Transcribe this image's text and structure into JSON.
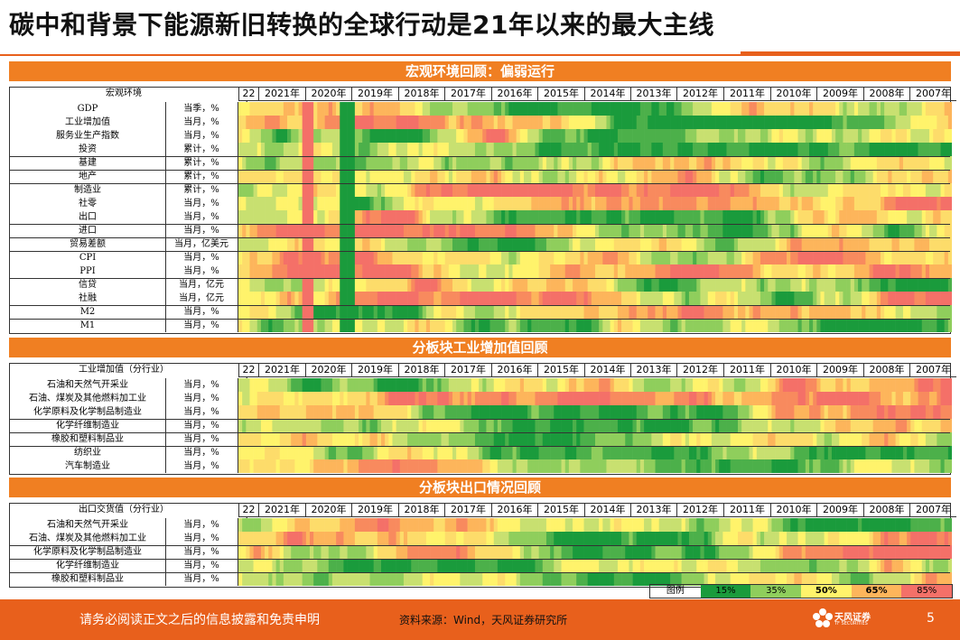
{
  "title": "碳中和背景下能源新旧转换的全球行动是21年以来的最大主线",
  "years": [
    "22年",
    "2021年",
    "2020年",
    "2019年",
    "2018年",
    "2017年",
    "2016年",
    "2015年",
    "2014年",
    "2013年",
    "2012年",
    "2011年",
    "2010年",
    "2009年",
    "2008年",
    "2007年"
  ],
  "sections": [
    {
      "band": "宏观环境回顾：偏弱运行",
      "header_label": "宏观环境",
      "rows": [
        {
          "name": "GDP",
          "unit": "当季，%"
        },
        {
          "name": "工业增加值",
          "unit": "当月，%"
        },
        {
          "name": "服务业生产指数",
          "unit": "当月，%"
        },
        {
          "name": "投资",
          "unit": "累计，%"
        },
        {
          "name": "基建",
          "unit": "累计，%"
        },
        {
          "name": "地产",
          "unit": "累计，%"
        },
        {
          "name": "制造业",
          "unit": "累计，%"
        },
        {
          "name": "社零",
          "unit": "当月，%"
        },
        {
          "name": "出口",
          "unit": "当月，%"
        },
        {
          "name": "进口",
          "unit": "当月，%"
        },
        {
          "name": "贸易差额",
          "unit": "当月，亿美元"
        },
        {
          "name": "CPI",
          "unit": "当月，%"
        },
        {
          "name": "PPI",
          "unit": "当月，%"
        },
        {
          "name": "信贷",
          "unit": "当月，亿元"
        },
        {
          "name": "社融",
          "unit": "当月，亿元"
        },
        {
          "name": "M2",
          "unit": "当月，%"
        },
        {
          "name": "M1",
          "unit": "当月，%"
        }
      ],
      "groups": [
        4,
        5,
        6,
        9,
        10,
        11,
        13,
        15,
        16
      ]
    },
    {
      "band": "分板块工业增加值回顾",
      "header_label": "工业增加值（分行业）",
      "rows": [
        {
          "name": "石油和天然气开采业",
          "unit": "当月，%"
        },
        {
          "name": "石油、煤炭及其他燃料加工业",
          "unit": "当月，%"
        },
        {
          "name": "化学原料及化学制品制造业",
          "unit": "当月，%"
        },
        {
          "name": "化学纤维制造业",
          "unit": "当月，%"
        },
        {
          "name": "橡胶和塑料制品业",
          "unit": "当月，%"
        },
        {
          "name": "纺织业",
          "unit": "当月，%"
        },
        {
          "name": "汽车制造业",
          "unit": "当月，%"
        }
      ],
      "groups": [
        3,
        4,
        5
      ]
    },
    {
      "band": "分板块出口情况回顾",
      "header_label": "出口交货值（分行业）",
      "rows": [
        {
          "name": "石油和天然气开采业",
          "unit": "当月，%"
        },
        {
          "name": "石油、煤炭及其他燃料加工业",
          "unit": "当月，%"
        },
        {
          "name": "化学原料及化学制品制造业",
          "unit": "当月，%"
        },
        {
          "name": "化学纤维制造业",
          "unit": "当月，%"
        },
        {
          "name": "橡胶和塑料制品业",
          "unit": "当月，%"
        }
      ],
      "groups": [
        2,
        3,
        4
      ]
    }
  ],
  "legend": {
    "label": "图例",
    "items": [
      {
        "text": "15%",
        "color": "#1a9b3c"
      },
      {
        "text": "35%",
        "color": "#8fce5c"
      },
      {
        "text": "50%",
        "color": "#fff36b"
      },
      {
        "text": "65%",
        "color": "#fdb55b"
      },
      {
        "text": "85%",
        "color": "#f47068"
      }
    ]
  },
  "footer": {
    "disclaimer": "请务必阅读正文之后的信息披露和免责申明",
    "source": "资料来源：Wind，天风证券研究所",
    "brand": "天风证券",
    "brand_en": "TF SECURITIES",
    "page": "5"
  },
  "colors": {
    "accent": "#e8601c",
    "band": "#f07f22"
  }
}
